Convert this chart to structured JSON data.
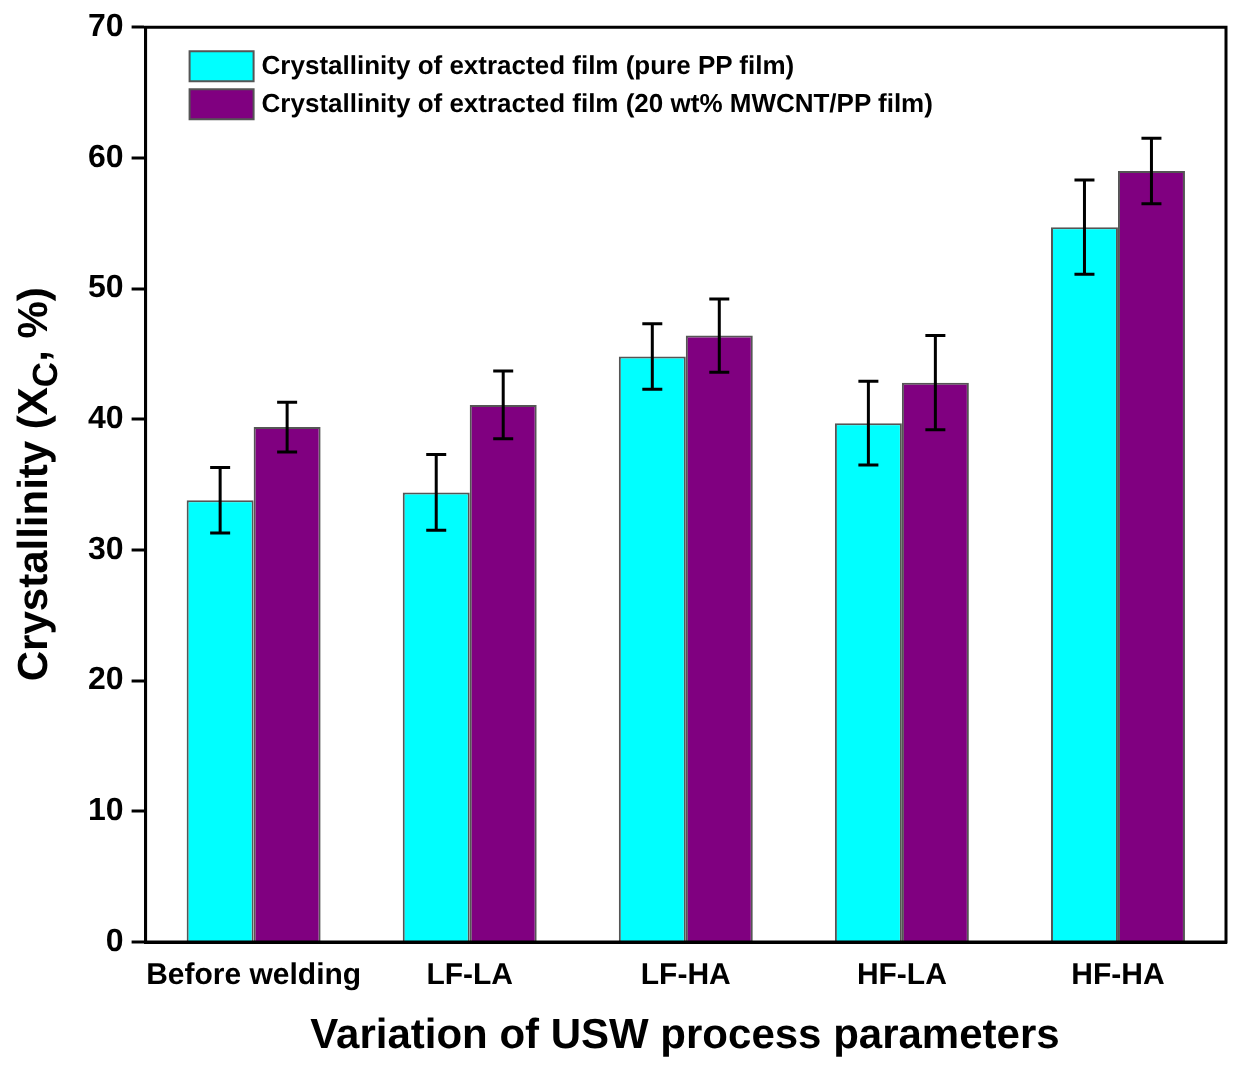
{
  "chart_data": {
    "type": "bar",
    "xlabel": "Variation of USW process parameters",
    "ylabel": "Crystallinity (X$_{C}$, %)",
    "categories": [
      "Before welding",
      "LF-LA",
      "LF-HA",
      "HF-LA",
      "HF-HA"
    ],
    "series": [
      {
        "name": "Crystallinity of extracted film (pure PP film)",
        "color": "#00ffff",
        "values": [
          33.8,
          34.4,
          44.8,
          39.7,
          54.7
        ],
        "errors": [
          2.5,
          2.9,
          2.5,
          3.2,
          3.6
        ]
      },
      {
        "name": "Crystallinity of extracted film (20 wt% MWCNT/PP film)",
        "color": "#800080",
        "values": [
          39.4,
          41.1,
          46.4,
          42.8,
          59.0
        ],
        "errors": [
          1.9,
          2.6,
          2.8,
          3.6,
          2.5
        ]
      }
    ],
    "ylim": [
      0,
      70
    ],
    "yticks": [
      0,
      10,
      20,
      30,
      40,
      50,
      60,
      70
    ],
    "grid": false,
    "legend": "top left"
  }
}
